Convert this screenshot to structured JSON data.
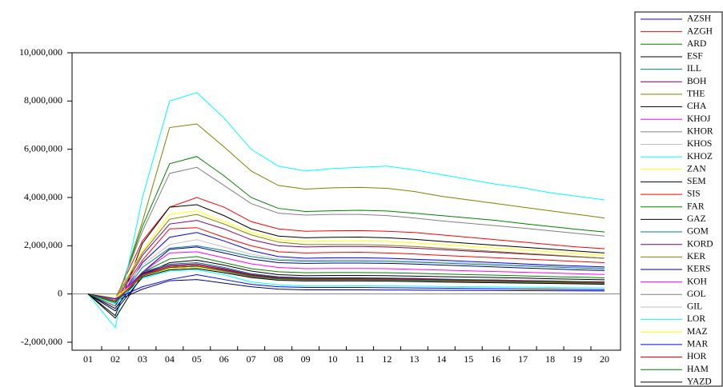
{
  "chart_data": {
    "type": "line",
    "categories": [
      "01",
      "02",
      "03",
      "04",
      "05",
      "06",
      "07",
      "08",
      "09",
      "10",
      "11",
      "12",
      "13",
      "14",
      "15",
      "16",
      "17",
      "18",
      "19",
      "20"
    ],
    "ylim": [
      -2000000,
      10000000
    ],
    "yticks": [
      {
        "value": -2000000,
        "label": "-2,000,000"
      },
      0,
      {
        "value": 2000000,
        "label": "2,000,000"
      },
      {
        "value": 4000000,
        "label": "4,000,000"
      },
      {
        "value": 6000000,
        "label": "6,000,000"
      },
      {
        "value": 8000000,
        "label": "8,000,000"
      },
      {
        "value": 10000000,
        "label": "10,000,000"
      }
    ],
    "series": [
      {
        "name": "AZSH",
        "color": "#0000ff",
        "values": [
          0,
          -500000,
          1300000,
          2350000,
          2550000,
          2200000,
          1800000,
          1550000,
          1480000,
          1500000,
          1500000,
          1480000,
          1440000,
          1400000,
          1350000,
          1300000,
          1250000,
          1200000,
          1160000,
          1120000
        ]
      },
      {
        "name": "AZGH",
        "color": "#ff0000",
        "values": [
          0,
          -200000,
          2200000,
          3600000,
          4000000,
          3600000,
          3000000,
          2700000,
          2600000,
          2620000,
          2630000,
          2600000,
          2550000,
          2450000,
          2350000,
          2250000,
          2150000,
          2050000,
          1950000,
          1880000
        ]
      },
      {
        "name": "ARD",
        "color": "#008000",
        "values": [
          0,
          -400000,
          2800000,
          5400000,
          5700000,
          4900000,
          4000000,
          3550000,
          3420000,
          3450000,
          3470000,
          3440000,
          3350000,
          3250000,
          3150000,
          3050000,
          2920000,
          2800000,
          2680000,
          2570000
        ]
      },
      {
        "name": "ESF",
        "color": "#000000",
        "values": [
          0,
          -900000,
          2100000,
          3600000,
          3700000,
          3250000,
          2700000,
          2400000,
          2330000,
          2350000,
          2360000,
          2330000,
          2270000,
          2180000,
          2100000,
          2020000,
          1940000,
          1860000,
          1780000,
          1700000
        ]
      },
      {
        "name": "ILL",
        "color": "#008080",
        "values": [
          0,
          -400000,
          1100000,
          1900000,
          2000000,
          1800000,
          1550000,
          1400000,
          1360000,
          1370000,
          1370000,
          1350000,
          1320000,
          1280000,
          1240000,
          1200000,
          1160000,
          1120000,
          1080000,
          1040000
        ]
      },
      {
        "name": "BOH",
        "color": "#800080",
        "values": [
          0,
          -300000,
          1600000,
          2900000,
          3050000,
          2700000,
          2250000,
          2000000,
          1950000,
          1970000,
          1970000,
          1950000,
          1900000,
          1840000,
          1780000,
          1720000,
          1660000,
          1600000,
          1540000,
          1480000
        ]
      },
      {
        "name": "THE",
        "color": "#808000",
        "values": [
          0,
          -500000,
          3000000,
          6900000,
          7050000,
          6100000,
          5100000,
          4500000,
          4350000,
          4400000,
          4420000,
          4380000,
          4250000,
          4050000,
          3900000,
          3750000,
          3600000,
          3450000,
          3300000,
          3150000
        ]
      },
      {
        "name": "CHA",
        "color": "#000080",
        "values": [
          0,
          -600000,
          900000,
          1850000,
          1950000,
          1700000,
          1450000,
          1300000,
          1270000,
          1280000,
          1280000,
          1270000,
          1240000,
          1200000,
          1160000,
          1120000,
          1080000,
          1040000,
          1000000,
          970000
        ]
      },
      {
        "name": "KHOJ",
        "color": "#ff00ff",
        "values": [
          0,
          -200000,
          900000,
          1700000,
          1750000,
          1500000,
          1250000,
          1100000,
          1050000,
          1060000,
          1060000,
          1050000,
          1020000,
          990000,
          960000,
          930000,
          900000,
          870000,
          840000,
          810000
        ]
      },
      {
        "name": "KHOR",
        "color": "#808080",
        "values": [
          0,
          -300000,
          2600000,
          5000000,
          5250000,
          4500000,
          3750000,
          3350000,
          3270000,
          3300000,
          3300000,
          3250000,
          3150000,
          3030000,
          2930000,
          2830000,
          2730000,
          2620000,
          2510000,
          2400000
        ]
      },
      {
        "name": "KHOS",
        "color": "#c0c0c0",
        "values": [
          0,
          -200000,
          1200000,
          2050000,
          2250000,
          1950000,
          1650000,
          1450000,
          1400000,
          1420000,
          1420000,
          1400000,
          1370000,
          1330000,
          1280000,
          1240000,
          1200000,
          1160000,
          1120000,
          1080000
        ]
      },
      {
        "name": "KHOZ",
        "color": "#00ffff",
        "values": [
          0,
          -1400000,
          4000000,
          8000000,
          8350000,
          7300000,
          6000000,
          5300000,
          5100000,
          5200000,
          5250000,
          5300000,
          5150000,
          4950000,
          4750000,
          4550000,
          4400000,
          4200000,
          4050000,
          3900000
        ]
      },
      {
        "name": "ZAN",
        "color": "#ffff00",
        "values": [
          0,
          -200000,
          1800000,
          3300000,
          3450000,
          3000000,
          2550000,
          2250000,
          2180000,
          2200000,
          2200000,
          2180000,
          2120000,
          2050000,
          1980000,
          1900000,
          1830000,
          1750000,
          1680000,
          1600000
        ]
      },
      {
        "name": "SEM",
        "color": "#000080",
        "values": [
          0,
          -300000,
          200000,
          550000,
          600000,
          450000,
          300000,
          200000,
          170000,
          170000,
          170000,
          165000,
          160000,
          155000,
          150000,
          145000,
          140000,
          135000,
          130000,
          125000
        ]
      },
      {
        "name": "SIS",
        "color": "#ff0000",
        "values": [
          0,
          -300000,
          1400000,
          2700000,
          2750000,
          2350000,
          2000000,
          1750000,
          1700000,
          1720000,
          1730000,
          1700000,
          1660000,
          1600000,
          1550000,
          1500000,
          1450000,
          1400000,
          1350000,
          1300000
        ]
      },
      {
        "name": "FAR",
        "color": "#008000",
        "values": [
          0,
          -300000,
          900000,
          1450000,
          1550000,
          1300000,
          1050000,
          920000,
          880000,
          890000,
          890000,
          880000,
          860000,
          830000,
          800000,
          780000,
          750000,
          720000,
          700000,
          670000
        ]
      },
      {
        "name": "GAZ",
        "color": "#000000",
        "values": [
          0,
          -1000000,
          800000,
          1300000,
          1400000,
          1200000,
          950000,
          800000,
          760000,
          770000,
          770000,
          760000,
          740000,
          720000,
          700000,
          680000,
          660000,
          630000,
          610000,
          590000
        ]
      },
      {
        "name": "GOM",
        "color": "#008080",
        "values": [
          0,
          -300000,
          910000,
          1235000,
          1300000,
          1105000,
          845000,
          715000,
          676000,
          676000,
          676000,
          663000,
          650000,
          624000,
          598000,
          585000,
          559000,
          546000,
          520000,
          507000
        ]
      },
      {
        "name": "KORD",
        "color": "#800080",
        "values": [
          0,
          -300000,
          875000,
          1190000,
          1250000,
          1060000,
          810000,
          690000,
          650000,
          650000,
          650000,
          640000,
          625000,
          600000,
          575000,
          560000,
          540000,
          525000,
          500000,
          490000
        ]
      },
      {
        "name": "KER",
        "color": "#808000",
        "values": [
          0,
          -200000,
          1700000,
          3100000,
          3300000,
          2900000,
          2450000,
          2150000,
          2050000,
          2050000,
          2050000,
          2020000,
          1970000,
          1900000,
          1830000,
          1760000,
          1690000,
          1620000,
          1550000,
          1480000
        ]
      },
      {
        "name": "KERS",
        "color": "#000080",
        "values": [
          0,
          -600000,
          840000,
          1140000,
          1200000,
          1020000,
          780000,
          660000,
          624000,
          624000,
          624000,
          612000,
          600000,
          576000,
          552000,
          540000,
          516000,
          504000,
          480000,
          468000
        ]
      },
      {
        "name": "KOH",
        "color": "#ff00ff",
        "values": [
          0,
          -200000,
          800000,
          1090000,
          1150000,
          980000,
          750000,
          630000,
          600000,
          600000,
          600000,
          590000,
          575000,
          550000,
          530000,
          520000,
          495000,
          485000,
          460000,
          450000
        ]
      },
      {
        "name": "GOL",
        "color": "#808080",
        "values": [
          0,
          -250000,
          770000,
          1045000,
          1100000,
          935000,
          715000,
          605000,
          572000,
          572000,
          572000,
          561000,
          550000,
          528000,
          506000,
          495000,
          473000,
          462000,
          440000,
          429000
        ]
      },
      {
        "name": "GIL",
        "color": "#c0c0c0",
        "values": [
          0,
          -200000,
          735000,
          1000000,
          1050000,
          890000,
          680000,
          580000,
          546000,
          546000,
          546000,
          536000,
          525000,
          504000,
          483000,
          472000,
          452000,
          441000,
          420000,
          410000
        ]
      },
      {
        "name": "LOR",
        "color": "#00ffff",
        "values": [
          0,
          -400000,
          650000,
          950000,
          1000000,
          800000,
          500000,
          380000,
          330000,
          330000,
          335000,
          330000,
          320000,
          310000,
          300000,
          290000,
          280000,
          270000,
          260000,
          250000
        ]
      },
      {
        "name": "MAZ",
        "color": "#ffff00",
        "values": [
          0,
          -150000,
          700000,
          1050000,
          1100000,
          950000,
          760000,
          640000,
          610000,
          610000,
          610000,
          600000,
          585000,
          565000,
          545000,
          530000,
          510000,
          495000,
          475000,
          460000
        ]
      },
      {
        "name": "MAR",
        "color": "#0000ff",
        "values": [
          0,
          -200000,
          300000,
          600000,
          800000,
          600000,
          400000,
          300000,
          270000,
          270000,
          270000,
          260000,
          250000,
          240000,
          230000,
          220000,
          210000,
          200000,
          190000,
          180000
        ]
      },
      {
        "name": "HOR",
        "color": "#ff0000",
        "values": [
          0,
          -300000,
          800000,
          1150000,
          1200000,
          1000000,
          770000,
          650000,
          620000,
          620000,
          620000,
          610000,
          595000,
          575000,
          555000,
          540000,
          520000,
          505000,
          485000,
          470000
        ]
      },
      {
        "name": "HAM",
        "color": "#008000",
        "values": [
          0,
          -350000,
          750000,
          1100000,
          1150000,
          960000,
          740000,
          630000,
          600000,
          600000,
          600000,
          590000,
          575000,
          555000,
          535000,
          520000,
          500000,
          485000,
          465000,
          450000
        ]
      },
      {
        "name": "YAZD",
        "color": "#000000",
        "values": [
          0,
          -700000,
          700000,
          1000000,
          1050000,
          880000,
          680000,
          570000,
          540000,
          540000,
          540000,
          530000,
          515000,
          495000,
          478000,
          465000,
          448000,
          435000,
          418000,
          405000
        ]
      }
    ]
  }
}
